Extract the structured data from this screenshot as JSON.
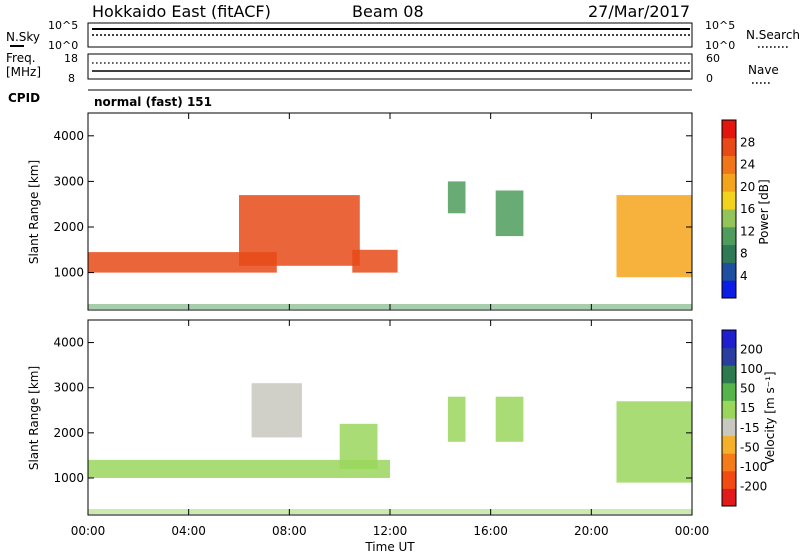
{
  "header": {
    "radar": "Hokkaido East (fitACF)",
    "beam": "Beam 08",
    "date": "27/Mar/2017"
  },
  "status_panels": {
    "nsky": {
      "label": "N.Sky",
      "tick_top": "10^5",
      "tick_bottom": "10^0"
    },
    "nsearch": {
      "label": "N.Search",
      "tick_top": "10^5",
      "tick_bottom": "10^0"
    },
    "freq": {
      "label_top": "Freq.",
      "label_unit": "[MHz]",
      "tick_top": "18",
      "tick_bottom": "8"
    },
    "nave": {
      "label": "Nave",
      "tick_top": "60",
      "tick_bottom": "0"
    },
    "cpid": {
      "label": "CPID",
      "value": "normal (fast) 151"
    }
  },
  "colors": {
    "power": [
      "#0a1ee6",
      "#1f4fa0",
      "#2f7a55",
      "#4f9c5c",
      "#93c45a",
      "#f2d21a",
      "#f4a41a",
      "#f1761a",
      "#e84a17",
      "#e3160f"
    ],
    "velocity": [
      "#e31a1c",
      "#f24a12",
      "#f47b18",
      "#f4b02a",
      "#c8c8c0",
      "#9ad65c",
      "#56b44a",
      "#2e7a4f",
      "#2a3ea0",
      "#1f1fd0"
    ]
  },
  "chart_data": [
    {
      "type": "heatmap",
      "name": "power",
      "xlabel": "Time UT",
      "ylabel": "Slant Range [km]",
      "ylim": [
        180,
        4500
      ],
      "x_ticks": [
        "00:00",
        "04:00",
        "08:00",
        "12:00",
        "16:00",
        "20:00",
        "00:00"
      ],
      "y_ticks": [
        "1000",
        "2000",
        "3000",
        "4000"
      ],
      "colorbar": {
        "label": "Power [dB]",
        "ticks": [
          "4",
          "8",
          "12",
          "16",
          "20",
          "24",
          "28"
        ],
        "range": [
          0,
          30
        ]
      },
      "echo_regions": [
        {
          "t": [
            0.0,
            7.5
          ],
          "range": [
            1000,
            1450
          ],
          "value": 24
        },
        {
          "t": [
            6.0,
            10.8
          ],
          "range": [
            1150,
            2700
          ],
          "value": 24
        },
        {
          "t": [
            10.5,
            12.3
          ],
          "range": [
            1000,
            1500
          ],
          "value": 26
        },
        {
          "t": [
            14.3,
            15.0
          ],
          "range": [
            2300,
            3000
          ],
          "value": 10
        },
        {
          "t": [
            16.2,
            17.3
          ],
          "range": [
            1800,
            2800
          ],
          "value": 10
        },
        {
          "t": [
            21.0,
            24.0
          ],
          "range": [
            900,
            2700
          ],
          "value": 18
        }
      ]
    },
    {
      "type": "heatmap",
      "name": "velocity",
      "xlabel": "Time UT",
      "ylabel": "Slant Range [km]",
      "ylim": [
        180,
        4500
      ],
      "x_ticks": [
        "00:00",
        "04:00",
        "08:00",
        "12:00",
        "16:00",
        "20:00",
        "00:00"
      ],
      "y_ticks": [
        "1000",
        "2000",
        "3000",
        "4000"
      ],
      "colorbar": {
        "label": "Velocity [m s⁻¹]",
        "ticks": [
          "200",
          "100",
          "50",
          "15",
          "-15",
          "-50",
          "-100",
          "-200"
        ],
        "range": [
          -250,
          250
        ]
      },
      "echo_regions": [
        {
          "t": [
            0.0,
            12.0
          ],
          "range": [
            1000,
            1400
          ],
          "value": 0
        },
        {
          "t": [
            6.5,
            8.5
          ],
          "range": [
            1900,
            3100
          ],
          "value": -40
        },
        {
          "t": [
            10.0,
            11.5
          ],
          "range": [
            1200,
            2200
          ],
          "value": 40
        },
        {
          "t": [
            14.3,
            15.0
          ],
          "range": [
            1800,
            2800
          ],
          "value": 40
        },
        {
          "t": [
            16.2,
            17.3
          ],
          "range": [
            1800,
            2800
          ],
          "value": 40
        },
        {
          "t": [
            21.0,
            24.0
          ],
          "range": [
            900,
            2700
          ],
          "value": 0
        }
      ]
    }
  ]
}
